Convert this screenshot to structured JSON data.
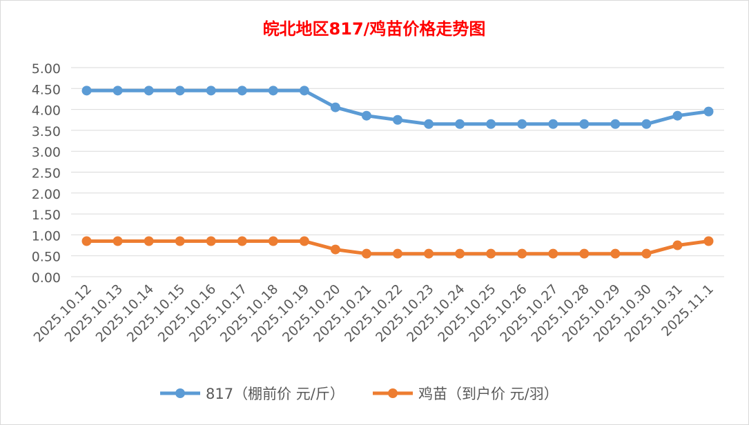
{
  "chart_data": {
    "type": "line",
    "title": "皖北地区817/鸡苗价格走势图",
    "categories": [
      "2025.10.12",
      "2025.10.13",
      "2025.10.14",
      "2025.10.15",
      "2025.10.16",
      "2025.10.17",
      "2025.10.18",
      "2025.10.19",
      "2025.10.20",
      "2025.10.21",
      "2025.10.22",
      "2025.10.23",
      "2025.10.24",
      "2025.10.25",
      "2025.10.26",
      "2025.10.27",
      "2025.10.28",
      "2025.10.29",
      "2025.10.30",
      "2025.10.31",
      "2025.11.1"
    ],
    "series": [
      {
        "name": "817（棚前价 元/斤）",
        "color": "#5b9bd5",
        "values": [
          4.45,
          4.45,
          4.45,
          4.45,
          4.45,
          4.45,
          4.45,
          4.45,
          4.05,
          3.85,
          3.75,
          3.65,
          3.65,
          3.65,
          3.65,
          3.65,
          3.65,
          3.65,
          3.65,
          3.85,
          3.95
        ]
      },
      {
        "name": "鸡苗（到户价 元/羽）",
        "color": "#ed7d31",
        "values": [
          0.85,
          0.85,
          0.85,
          0.85,
          0.85,
          0.85,
          0.85,
          0.85,
          0.65,
          0.55,
          0.55,
          0.55,
          0.55,
          0.55,
          0.55,
          0.55,
          0.55,
          0.55,
          0.55,
          0.75,
          0.85
        ]
      }
    ],
    "ylim": [
      0,
      5
    ],
    "ytick_labels": [
      "0.00",
      "0.50",
      "1.00",
      "1.50",
      "2.00",
      "2.50",
      "3.00",
      "3.50",
      "4.00",
      "4.50",
      "5.00"
    ],
    "grid": true,
    "legend": "bottom",
    "title_color": "#ff0000",
    "xlabel": "",
    "ylabel": ""
  }
}
